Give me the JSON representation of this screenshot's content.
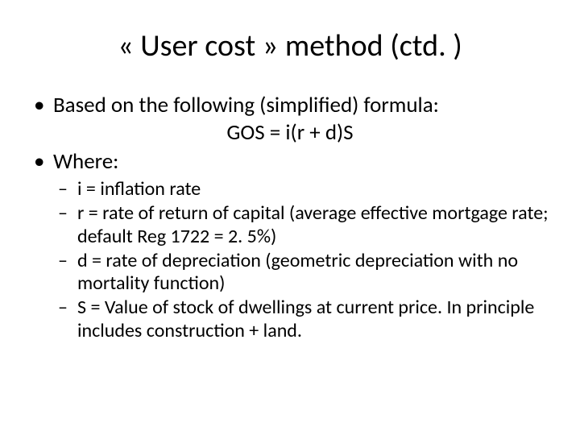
{
  "title": {
    "text": "« User cost » method (ctd. )",
    "fontsize": 38,
    "color": "#000000"
  },
  "body": {
    "fontsize_main": 27,
    "fontsize_sub": 24,
    "color": "#000000",
    "line_height_main": 1.25,
    "line_height_sub": 1.2
  },
  "bullets": [
    {
      "text": "Based on the following (simplified) formula:",
      "formula": "GOS = i(r + d)S"
    },
    {
      "text": "Where:",
      "sub": [
        "i = inflation rate",
        "r = rate of return of capital (average effective mortgage rate; default Reg 1722 = 2. 5%)",
        " d = rate of depreciation (geometric depreciation with no mortality function)",
        "S = Value of stock of dwellings at current price. In principle includes construction + land."
      ]
    }
  ],
  "background_color": "#ffffff"
}
